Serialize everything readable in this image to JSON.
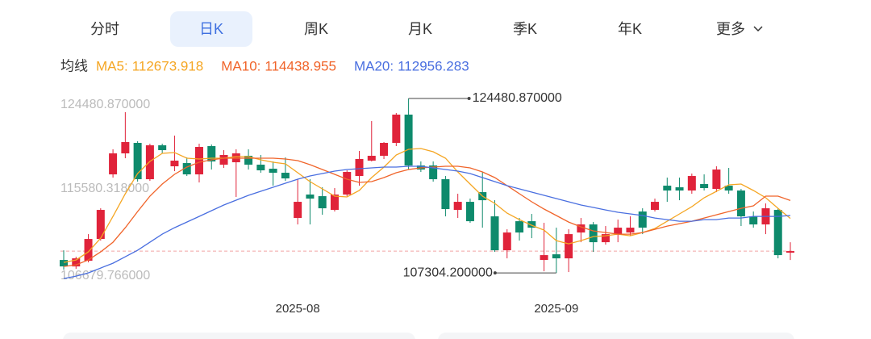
{
  "tabs": {
    "items": [
      "分时",
      "日K",
      "周K",
      "月K",
      "季K",
      "年K",
      "更多"
    ],
    "active": 1
  },
  "legend_title": "均线",
  "chart_data": {
    "type": "candlestick",
    "categories": [
      null,
      null,
      null,
      null,
      null,
      null,
      null,
      null,
      null,
      null,
      null,
      null,
      null,
      null,
      null,
      null,
      null,
      null,
      null,
      "2025-08",
      null,
      null,
      null,
      null,
      null,
      null,
      null,
      null,
      null,
      null,
      null,
      null,
      null,
      null,
      null,
      null,
      null,
      null,
      null,
      null,
      "2025-09",
      null,
      null,
      null,
      null,
      null,
      null,
      null,
      null,
      null,
      null,
      null,
      null,
      null,
      null,
      null,
      null,
      null,
      null,
      null
    ],
    "open": [
      108581,
      107945,
      108502,
      110648,
      117008,
      119075,
      120109,
      116531,
      119870,
      117803,
      118121,
      117008,
      119791,
      117962,
      118201,
      118837,
      117962,
      117565,
      117167,
      112715,
      115021,
      114862,
      113510,
      115021,
      116849,
      118360,
      118837,
      120109,
      122891,
      117883,
      117883,
      116531,
      113510,
      114305,
      115259,
      112874,
      109535,
      112397,
      112397,
      108581,
      109138,
      108740,
      111284,
      112079,
      110330,
      111125,
      111284,
      113351,
      113510,
      115895,
      115736,
      115418,
      116054,
      115577,
      115895,
      115418,
      112874,
      112079,
      113510,
      109297
    ],
    "high": [
      109535,
      108899,
      111125,
      113669,
      119473,
      123130,
      120268,
      120029,
      120029,
      120824,
      118678,
      120029,
      119950,
      119393,
      119473,
      119473,
      118916,
      118280,
      118678,
      116531,
      116531,
      115736,
      115657,
      117406,
      119314,
      122255,
      120188,
      123050,
      124480.87,
      118280,
      118280,
      116849,
      115100,
      114623,
      117247,
      114464,
      111602,
      112715,
      113113,
      112238,
      111761,
      111602,
      112715,
      112318,
      111920,
      112556,
      112874,
      113669,
      114623,
      116690,
      116690,
      117088,
      117008,
      117803,
      117644,
      115577,
      113351,
      114146,
      113669,
      110330
    ],
    "low": [
      107627,
      107707,
      108343,
      110489,
      116690,
      118598,
      116293,
      116372,
      119075,
      117326,
      116849,
      116213,
      117485,
      117644,
      114782,
      117485,
      117167,
      115895,
      116372,
      112079,
      112079,
      113033,
      113351,
      114862,
      115895,
      118280,
      118519,
      119791,
      117485,
      117247,
      116293,
      112874,
      112715,
      112238,
      111761,
      109376,
      108740,
      110489,
      110728,
      107468,
      107304.2,
      107389,
      110330,
      109376,
      110092,
      110330,
      110966,
      111125,
      113351,
      114305,
      114464,
      115100,
      115418,
      115259,
      115100,
      111920,
      111761,
      111125,
      108740,
      108581
    ],
    "close": [
      107945,
      108740,
      110648,
      113510,
      119075,
      120188,
      116531,
      119870,
      119393,
      118360,
      117008,
      119711,
      118280,
      118916,
      119075,
      117962,
      117406,
      117167,
      116611,
      114305,
      114623,
      113669,
      115021,
      117247,
      118519,
      118837,
      120109,
      122891,
      117883,
      117485,
      116531,
      113590,
      114305,
      112397,
      114464,
      109535,
      111284,
      111284,
      111761,
      109058,
      108740,
      111125,
      112079,
      110330,
      111125,
      111761,
      111761,
      111761,
      114305,
      115418,
      115418,
      116849,
      115657,
      117485,
      115418,
      112874,
      112079,
      113669,
      109058,
      109456
    ],
    "up_color": "#e0233a",
    "down_color": "#0e8a6c",
    "ma": [
      {
        "name": "MA5:",
        "color": "#f5a623",
        "values": [
          108342,
          108581,
          109376,
          110728,
          112874,
          115100,
          117088,
          118280,
          119075,
          119155,
          118598,
          118519,
          118598,
          118598,
          118757,
          118757,
          118439,
          118201,
          118042,
          117167,
          116293,
          115577,
          114862,
          114782,
          115418,
          116690,
          117724,
          118916,
          119473,
          119552,
          119234,
          118598,
          117247,
          116054,
          114862,
          114146,
          113192,
          112556,
          112000,
          111523,
          110489,
          110171,
          110489,
          110887,
          110966,
          111125,
          110966,
          111284,
          111682,
          112397,
          113113,
          113828,
          114703,
          115339,
          115975,
          116054,
          115418,
          114703,
          113669,
          112673.918
        ]
      },
      {
        "name": "MA10:",
        "color": "#f0642a",
        "values": [
          107945,
          108104,
          108581,
          109376,
          110330,
          111761,
          113351,
          114862,
          116054,
          117008,
          117724,
          118201,
          118439,
          118598,
          118598,
          118598,
          118598,
          118598,
          118519,
          118360,
          117962,
          117485,
          117008,
          116531,
          116213,
          116293,
          116690,
          117167,
          117485,
          117644,
          117724,
          117803,
          117803,
          117644,
          117247,
          116690,
          115895,
          115100,
          114305,
          113590,
          112954,
          112318,
          111841,
          111443,
          111284,
          111125,
          111125,
          111284,
          111602,
          111920,
          112159,
          112397,
          112715,
          113033,
          113351,
          113669,
          113908,
          114862,
          114862,
          114438.955
        ]
      },
      {
        "name": "MA20:",
        "color": "#4a6fe0",
        "values": [
          106753,
          106991,
          107309,
          107786,
          108263,
          108899,
          109535,
          110330,
          111125,
          111761,
          112318,
          112874,
          113431,
          113987,
          114464,
          114941,
          115339,
          115736,
          116134,
          116531,
          116849,
          117088,
          117326,
          117485,
          117565,
          117644,
          117724,
          117724,
          117803,
          117803,
          117644,
          117485,
          117326,
          117088,
          116690,
          116293,
          115895,
          115577,
          115259,
          114941,
          114623,
          114305,
          113987,
          113749,
          113510,
          113272,
          113113,
          112954,
          112715,
          112556,
          112397,
          112397,
          112556,
          112556,
          112715,
          112715,
          112874,
          112874,
          112874,
          112956.283
        ]
      }
    ],
    "ylim": [
      106679.766,
      124480.87
    ],
    "yticks": [
      {
        "value": 106679.766,
        "label": "106679.766000"
      },
      {
        "value": 115580.318,
        "label": "115580.318000"
      },
      {
        "value": 124480.87,
        "label": "124480.870000"
      }
    ],
    "high_label": "124480.870000",
    "low_label": "107304.200000",
    "grid": false
  }
}
